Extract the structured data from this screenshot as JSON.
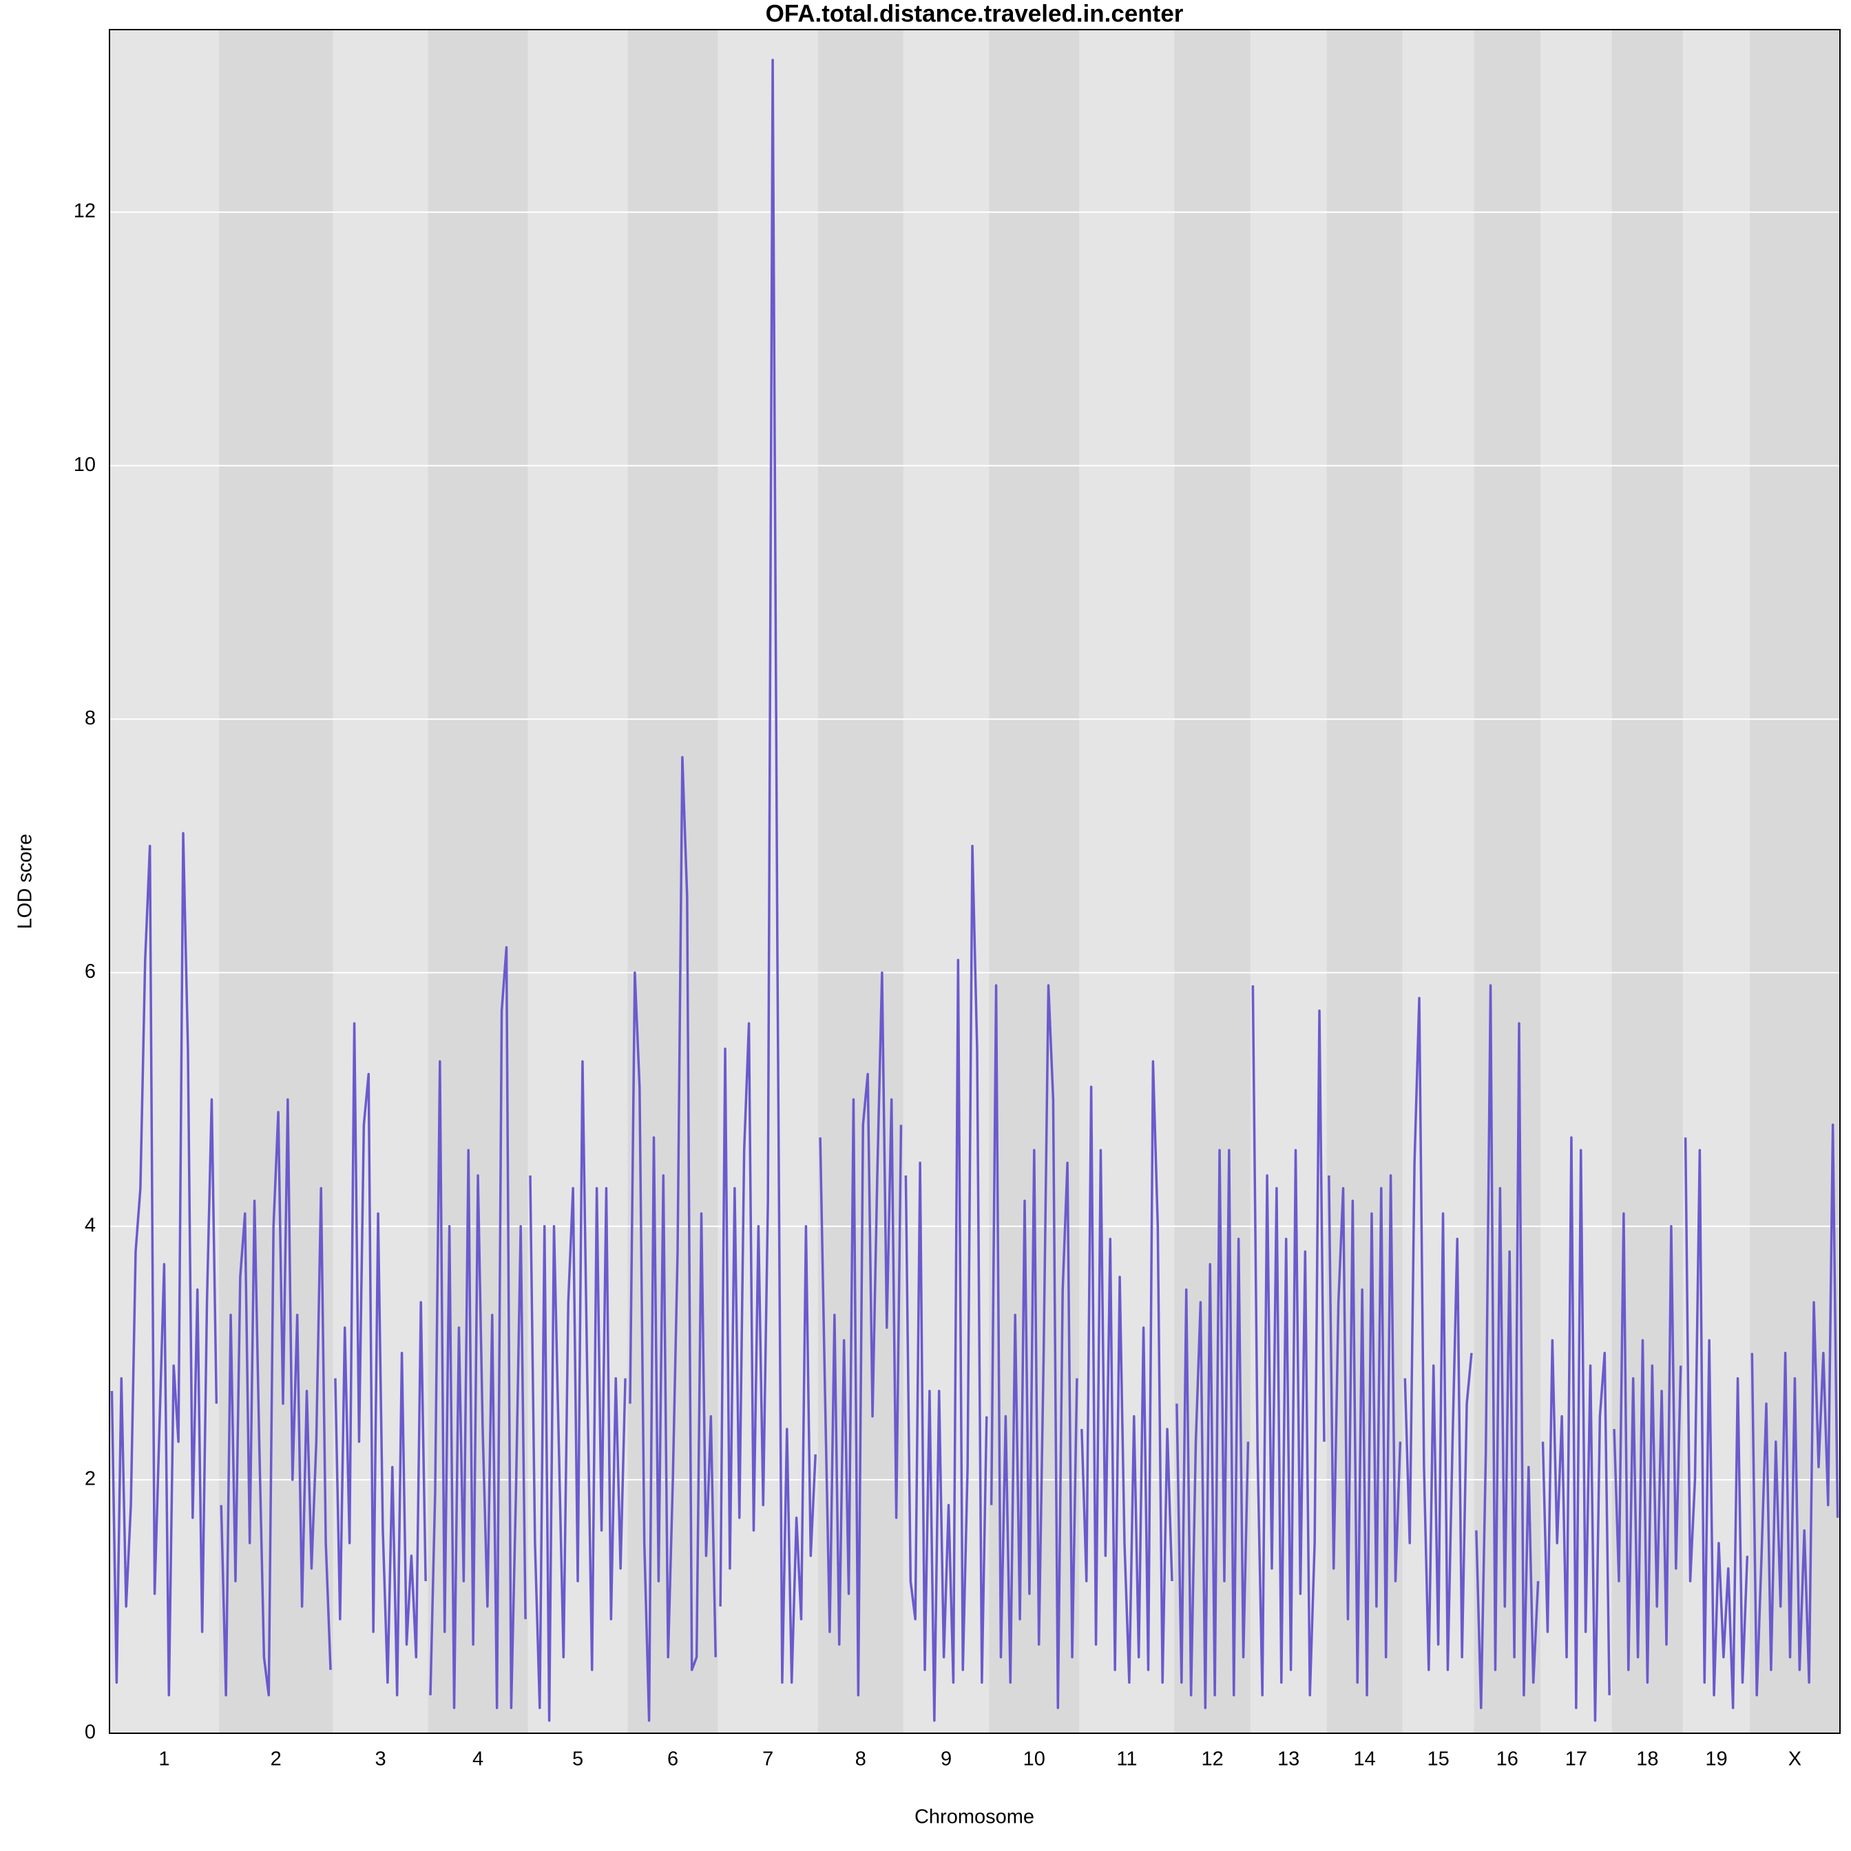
{
  "chart_data": {
    "type": "line",
    "title": "OFA.total.distance.traveled.in.center",
    "x_label": "Chromosome",
    "y_label": "LOD score",
    "color": "#6a5acd",
    "band_colors": [
      "#e5e5e5",
      "#d9d9d9"
    ],
    "grid": true,
    "ylim": [
      0,
      13.44
    ],
    "yticks": [
      0,
      2,
      4,
      6,
      8,
      10,
      12
    ],
    "categories": [
      "1",
      "2",
      "3",
      "4",
      "5",
      "6",
      "7",
      "8",
      "9",
      "10",
      "11",
      "12",
      "13",
      "14",
      "15",
      "16",
      "17",
      "18",
      "19",
      "X"
    ],
    "values": [
      [
        2.7,
        0.4,
        2.8,
        1.0,
        1.8,
        3.8,
        4.3,
        6.1,
        7.0,
        1.1,
        2.4,
        3.7,
        0.3,
        2.9,
        2.3,
        7.1,
        5.4,
        1.7,
        3.5,
        0.8,
        3.4,
        5.0,
        2.6
      ],
      [
        1.8,
        0.3,
        3.3,
        1.2,
        3.6,
        4.1,
        1.5,
        4.2,
        2.3,
        0.6,
        0.3,
        4.0,
        4.9,
        2.6,
        5.0,
        2.0,
        3.3,
        1.0,
        2.7,
        1.3,
        2.3,
        4.3,
        1.5,
        0.5
      ],
      [
        2.8,
        0.9,
        3.2,
        1.5,
        5.6,
        2.3,
        4.8,
        5.2,
        0.8,
        4.1,
        1.6,
        0.4,
        2.1,
        0.3,
        3.0,
        0.7,
        1.4,
        0.6,
        3.4,
        1.2
      ],
      [
        0.3,
        1.9,
        5.3,
        0.8,
        4.0,
        0.2,
        3.2,
        1.2,
        4.6,
        0.7,
        4.4,
        2.4,
        1.0,
        3.3,
        0.2,
        5.7,
        6.2,
        0.2,
        1.9,
        4.0,
        0.9
      ],
      [
        4.4,
        1.5,
        0.2,
        4.0,
        0.1,
        4.0,
        2.3,
        0.6,
        3.4,
        4.3,
        1.2,
        5.3,
        2.8,
        0.5,
        4.3,
        1.6,
        4.3,
        0.9,
        2.8,
        1.3,
        2.8
      ],
      [
        2.6,
        6.0,
        5.1,
        1.5,
        0.1,
        4.7,
        1.2,
        4.4,
        0.6,
        2.0,
        3.8,
        7.7,
        6.6,
        0.5,
        0.6,
        4.1,
        1.4,
        2.5,
        0.6
      ],
      [
        1.0,
        5.4,
        1.3,
        4.3,
        1.7,
        4.6,
        5.6,
        1.6,
        4.0,
        1.8,
        4.2,
        13.2,
        6.1,
        0.4,
        2.4,
        0.4,
        1.7,
        0.9,
        4.0,
        1.4,
        2.2
      ],
      [
        4.7,
        2.7,
        0.8,
        3.3,
        0.7,
        3.1,
        1.1,
        5.0,
        0.3,
        4.8,
        5.2,
        2.5,
        4.4,
        6.0,
        3.2,
        5.0,
        1.7,
        4.8
      ],
      [
        4.4,
        1.2,
        0.9,
        4.5,
        0.5,
        2.7,
        0.1,
        2.7,
        0.6,
        1.8,
        0.4,
        6.1,
        0.5,
        2.1,
        7.0,
        5.4,
        0.4,
        2.5
      ],
      [
        1.8,
        5.9,
        0.6,
        2.5,
        0.4,
        3.3,
        0.9,
        4.2,
        1.1,
        4.6,
        0.7,
        3.0,
        5.9,
        5.0,
        0.2,
        3.5,
        4.5,
        0.6,
        2.8
      ],
      [
        2.4,
        1.2,
        5.1,
        0.7,
        4.6,
        1.4,
        3.9,
        0.5,
        3.6,
        1.5,
        0.4,
        2.5,
        0.6,
        3.2,
        0.5,
        5.3,
        4.0,
        0.4,
        2.4,
        1.2
      ],
      [
        2.6,
        0.4,
        3.5,
        0.3,
        2.3,
        3.4,
        0.2,
        3.7,
        0.3,
        4.6,
        1.2,
        4.6,
        0.3,
        3.9,
        0.6,
        2.3
      ],
      [
        5.9,
        2.2,
        0.3,
        4.4,
        1.3,
        4.3,
        0.4,
        3.9,
        0.5,
        4.6,
        1.1,
        3.8,
        0.3,
        1.5,
        5.7,
        2.3
      ],
      [
        4.4,
        1.3,
        3.4,
        4.3,
        0.9,
        4.2,
        0.4,
        3.5,
        0.3,
        4.1,
        1.0,
        4.3,
        0.6,
        4.4,
        1.2,
        2.3
      ],
      [
        2.8,
        1.5,
        4.5,
        5.8,
        2.1,
        0.5,
        2.9,
        0.7,
        4.1,
        0.5,
        2.3,
        3.9,
        0.6,
        2.6,
        3.0
      ],
      [
        1.6,
        0.2,
        2.2,
        5.9,
        0.5,
        4.3,
        1.0,
        3.8,
        0.6,
        5.6,
        0.3,
        2.1,
        0.4,
        1.2
      ],
      [
        2.3,
        0.8,
        3.1,
        1.5,
        2.5,
        0.6,
        4.7,
        0.2,
        4.6,
        0.8,
        2.9,
        0.1,
        2.5,
        3.0,
        0.3
      ],
      [
        2.4,
        1.2,
        4.1,
        0.5,
        2.8,
        0.6,
        3.1,
        0.4,
        2.9,
        1.0,
        2.7,
        0.7,
        4.0,
        1.3,
        2.9
      ],
      [
        4.7,
        1.2,
        2.0,
        4.6,
        0.4,
        3.1,
        0.3,
        1.5,
        0.6,
        1.3,
        0.2,
        2.8,
        0.4,
        1.4
      ],
      [
        3.0,
        0.3,
        1.4,
        2.6,
        0.5,
        2.3,
        1.0,
        3.0,
        0.6,
        2.8,
        0.5,
        1.6,
        0.4,
        3.4,
        2.1,
        3.0,
        1.8,
        4.8,
        1.7
      ]
    ]
  }
}
